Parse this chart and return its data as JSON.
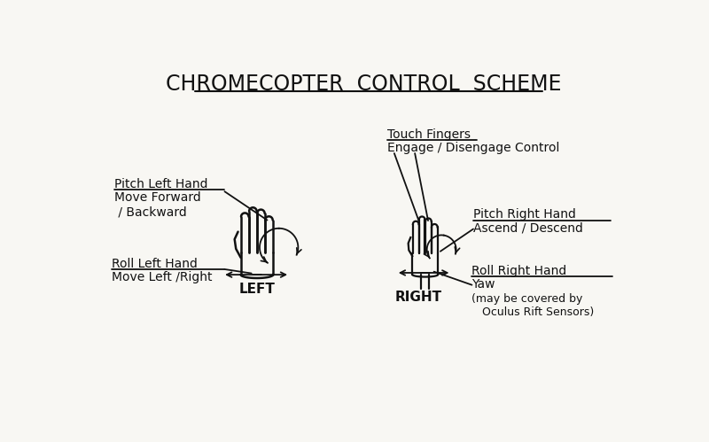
{
  "title": "CHROMECOPTER  CONTROL  SCHEME",
  "bg_color": "#f8f7f3",
  "text_color": "#111111",
  "title_fontsize": 17,
  "label_fontsize": 10,
  "small_fontsize": 9,
  "left_hand_label": "LEFT",
  "right_hand_label": "RIGHT",
  "pitch_left_header": "Pitch Left Hand",
  "pitch_left_body": "Move Forward\n / Backward",
  "roll_left_header": "Roll Left Hand",
  "roll_left_body": "Move Left /Right",
  "touch_header": "Touch Fingers",
  "touch_body": "Engage / Disengage Control",
  "pitch_right_header": "Pitch Right Hand",
  "pitch_right_body": "Ascend / Descend",
  "roll_right_header": "Roll Right Hand",
  "roll_right_body": "Yaw",
  "note": "(may be covered by\n   Oculus Rift Sensors)"
}
